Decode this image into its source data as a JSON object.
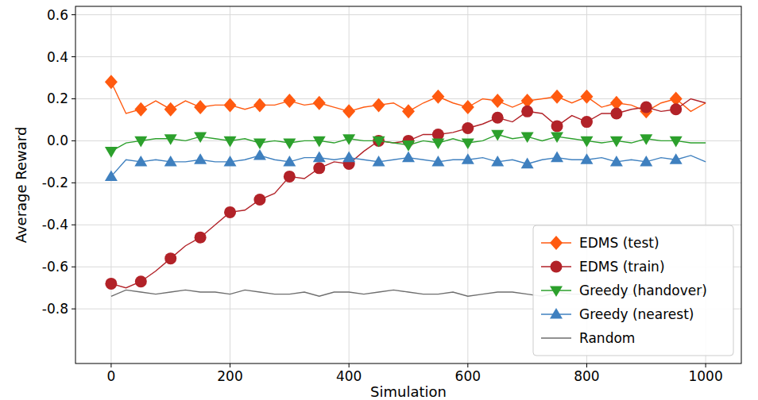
{
  "chart_data": {
    "type": "line",
    "x_label": "Simulation",
    "y_label": "Average Reward",
    "x": [
      0,
      25,
      50,
      75,
      100,
      125,
      150,
      175,
      200,
      225,
      250,
      275,
      300,
      325,
      350,
      375,
      400,
      425,
      450,
      475,
      500,
      525,
      550,
      575,
      600,
      625,
      650,
      675,
      700,
      725,
      750,
      775,
      800,
      825,
      850,
      875,
      900,
      925,
      950,
      975,
      1000
    ],
    "series": [
      {
        "name": "EDMS (test)",
        "color": "#ff5a10",
        "marker": "diamond",
        "values": [
          0.28,
          0.13,
          0.15,
          0.19,
          0.15,
          0.19,
          0.16,
          0.17,
          0.17,
          0.15,
          0.17,
          0.17,
          0.19,
          0.17,
          0.18,
          0.16,
          0.14,
          0.16,
          0.17,
          0.18,
          0.14,
          0.18,
          0.21,
          0.18,
          0.16,
          0.2,
          0.19,
          0.16,
          0.19,
          0.2,
          0.21,
          0.18,
          0.21,
          0.16,
          0.18,
          0.17,
          0.14,
          0.18,
          0.2,
          0.14,
          0.18
        ]
      },
      {
        "name": "EDMS (train)",
        "color": "#b22228",
        "marker": "circle",
        "values": [
          -0.68,
          -0.7,
          -0.67,
          -0.62,
          -0.56,
          -0.5,
          -0.46,
          -0.4,
          -0.34,
          -0.33,
          -0.28,
          -0.25,
          -0.17,
          -0.18,
          -0.13,
          -0.1,
          -0.11,
          -0.05,
          0,
          -0.01,
          0,
          0.03,
          0.03,
          0.04,
          0.06,
          0.08,
          0.11,
          0.09,
          0.14,
          0.13,
          0.07,
          0.12,
          0.09,
          0.13,
          0.13,
          0.15,
          0.16,
          0.14,
          0.15,
          0.2,
          0.18
        ]
      },
      {
        "name": "Greedy (handover)",
        "color": "#2ca02c",
        "marker": "triangle-down",
        "values": [
          -0.05,
          -0.01,
          0,
          0.01,
          0.01,
          0,
          0.02,
          0.01,
          0,
          0.01,
          -0.01,
          0,
          -0.01,
          0,
          0,
          -0.01,
          0.01,
          0,
          0,
          -0.01,
          -0.02,
          0,
          -0.01,
          0.01,
          -0.01,
          0,
          0.03,
          0.01,
          0.02,
          0,
          0.02,
          0.01,
          0,
          -0.01,
          0,
          -0.01,
          0.01,
          0,
          0,
          -0.01,
          -0.01
        ]
      },
      {
        "name": "Greedy (nearest)",
        "color": "#3f80bf",
        "marker": "triangle-up",
        "values": [
          -0.17,
          -0.09,
          -0.1,
          -0.09,
          -0.1,
          -0.1,
          -0.09,
          -0.1,
          -0.1,
          -0.09,
          -0.07,
          -0.09,
          -0.1,
          -0.08,
          -0.08,
          -0.09,
          -0.08,
          -0.09,
          -0.1,
          -0.09,
          -0.08,
          -0.09,
          -0.1,
          -0.09,
          -0.09,
          -0.08,
          -0.1,
          -0.09,
          -0.11,
          -0.09,
          -0.08,
          -0.09,
          -0.09,
          -0.08,
          -0.1,
          -0.09,
          -0.1,
          -0.08,
          -0.09,
          -0.07,
          -0.1
        ]
      },
      {
        "name": "Random",
        "color": "#6e6e6e",
        "marker": "none",
        "values": [
          -0.74,
          -0.71,
          -0.72,
          -0.73,
          -0.72,
          -0.71,
          -0.72,
          -0.72,
          -0.73,
          -0.71,
          -0.72,
          -0.73,
          -0.73,
          -0.72,
          -0.74,
          -0.72,
          -0.72,
          -0.73,
          -0.72,
          -0.71,
          -0.72,
          -0.73,
          -0.73,
          -0.72,
          -0.74,
          -0.73,
          -0.72,
          -0.72,
          -0.73,
          -0.74,
          -0.72,
          -0.73,
          -0.73,
          -0.72,
          -0.74,
          -0.73,
          -0.72,
          -0.73,
          -0.74,
          -0.73,
          -0.72
        ]
      }
    ],
    "xlim": [
      -60,
      1060
    ],
    "ylim": [
      -1.06,
      0.64
    ],
    "xticks": [
      0,
      200,
      400,
      600,
      800,
      1000
    ],
    "yticks": [
      -0.8,
      -0.6,
      -0.4,
      -0.2,
      {
        "value": 0,
        "label": "0.0"
      },
      0.2,
      0.4,
      0.6
    ],
    "grid": true,
    "legend": "lower right"
  }
}
